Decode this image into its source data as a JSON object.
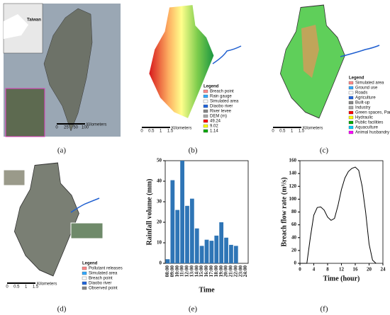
{
  "panel_labels": [
    "(a)",
    "(b)",
    "(c)",
    "(d)",
    "(e)",
    "(f)"
  ],
  "panels": [
    {
      "legend": [
        "Taiwan"
      ],
      "scale": [
        "0",
        "25",
        "50",
        "100",
        "Kilometers"
      ]
    },
    {
      "legend": [
        "Legend",
        "Breach point",
        "Rain gauge",
        "Simulated area",
        "Diaobo river",
        "River levee",
        "DEM (m)",
        "49.24",
        "9.02",
        "1.14"
      ],
      "scale": [
        "0",
        "0.5",
        "1",
        "1.5",
        "Kilometers"
      ]
    },
    {
      "legend": [
        "Legend",
        "Simulated area",
        "Ground use",
        "Roads",
        "Agriculture",
        "Built-up",
        "Industry",
        "Green spaces, Parks",
        "Hydraulic",
        "Public facilities",
        "Aquaculture",
        "Animal husbandry"
      ],
      "scale": [
        "0",
        "0.5",
        "1",
        "1.5",
        "Kilometers"
      ]
    },
    {
      "legend": [
        "Legend",
        "Pollutant releases",
        "Simulated area",
        "Breach point",
        "Diaobo river",
        "Observed point"
      ],
      "scale": [
        "0",
        "0.5",
        "1",
        "1.5",
        "Kilometers"
      ]
    }
  ],
  "chart_data": [
    {
      "type": "bar",
      "categories": [
        "08:00",
        "09:00",
        "10:00",
        "11:00",
        "12:00",
        "13:00",
        "14:00",
        "15:00",
        "16:00",
        "17:00",
        "18:00",
        "19:00",
        "20:00",
        "21:00",
        "22:00",
        "23:00",
        "24:00"
      ],
      "values": [
        2,
        40.5,
        26,
        50,
        28,
        31.5,
        17,
        8.5,
        11.5,
        11,
        13.5,
        20,
        12.5,
        9,
        8.5,
        0,
        0
      ],
      "color": "#2e75b6",
      "ylim": [
        0,
        50
      ],
      "yticks": [
        0,
        10,
        20,
        30,
        40,
        50
      ],
      "ylabel": "Rainfall volume (mm)",
      "xlabel": "Time"
    },
    {
      "type": "line",
      "x": [
        0,
        2,
        3,
        4,
        5,
        6,
        7,
        8,
        9,
        10,
        11,
        12,
        13,
        14,
        15,
        16,
        17,
        18,
        19,
        20,
        21,
        22
      ],
      "values": [
        0,
        0,
        40,
        75,
        87,
        88,
        83,
        72,
        67,
        70,
        90,
        115,
        133,
        143,
        148,
        150,
        145,
        120,
        80,
        30,
        5,
        0
      ],
      "color": "#000000",
      "xlim": [
        0,
        24
      ],
      "xticks": [
        0,
        4,
        8,
        12,
        16,
        20,
        24
      ],
      "ylim": [
        0,
        160
      ],
      "yticks": [
        0,
        20,
        40,
        60,
        80,
        100,
        120,
        140,
        160
      ],
      "ylabel": "Breach flow rate (m³/s)",
      "xlabel": "Time (hour)"
    }
  ]
}
